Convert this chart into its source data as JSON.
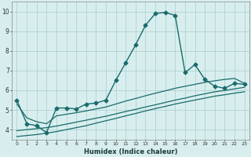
{
  "title": "",
  "xlabel": "Humidex (Indice chaleur)",
  "ylabel": "",
  "background_color": "#d8eeee",
  "grid_color": "#aacccc",
  "line_color": "#1a6b6b",
  "xlim": [
    -0.5,
    23.5
  ],
  "ylim": [
    3.5,
    10.5
  ],
  "xticks": [
    0,
    1,
    2,
    3,
    4,
    5,
    6,
    7,
    8,
    9,
    10,
    11,
    12,
    13,
    14,
    15,
    16,
    17,
    18,
    19,
    20,
    21,
    22,
    23
  ],
  "yticks": [
    4,
    5,
    6,
    7,
    8,
    9,
    10
  ],
  "series": [
    {
      "x": [
        0,
        1,
        2,
        3,
        4,
        5,
        6,
        7,
        8,
        9,
        10,
        11,
        12,
        13,
        14,
        15,
        16,
        17,
        18,
        19,
        20,
        21,
        22,
        23
      ],
      "y": [
        5.5,
        4.3,
        4.2,
        3.85,
        5.1,
        5.1,
        5.05,
        5.3,
        5.35,
        5.5,
        6.5,
        7.4,
        8.3,
        9.3,
        9.9,
        9.95,
        9.8,
        6.9,
        7.3,
        6.55,
        6.2,
        6.1,
        6.35,
        6.3
      ],
      "marker": "D",
      "markersize": 2.5,
      "linewidth": 1.0,
      "linestyle": "-"
    },
    {
      "x": [
        0,
        1,
        2,
        3,
        4,
        5,
        6,
        7,
        8,
        9,
        10,
        11,
        12,
        13,
        14,
        15,
        16,
        17,
        18,
        19,
        20,
        21,
        22,
        23
      ],
      "y": [
        5.3,
        4.6,
        4.4,
        4.3,
        4.7,
        4.78,
        4.86,
        4.95,
        5.05,
        5.15,
        5.3,
        5.45,
        5.58,
        5.72,
        5.85,
        5.97,
        6.1,
        6.2,
        6.3,
        6.4,
        6.48,
        6.55,
        6.6,
        6.35
      ],
      "marker": null,
      "markersize": 0,
      "linewidth": 0.9,
      "linestyle": "-"
    },
    {
      "x": [
        0,
        1,
        2,
        3,
        4,
        5,
        6,
        7,
        8,
        9,
        10,
        11,
        12,
        13,
        14,
        15,
        16,
        17,
        18,
        19,
        20,
        21,
        22,
        23
      ],
      "y": [
        3.95,
        4.0,
        4.05,
        4.1,
        4.18,
        4.28,
        4.38,
        4.48,
        4.58,
        4.68,
        4.8,
        4.92,
        5.03,
        5.15,
        5.26,
        5.38,
        5.5,
        5.6,
        5.72,
        5.82,
        5.92,
        5.99,
        6.07,
        6.15
      ],
      "marker": null,
      "markersize": 0,
      "linewidth": 0.9,
      "linestyle": "-"
    },
    {
      "x": [
        0,
        1,
        2,
        3,
        4,
        5,
        6,
        7,
        8,
        9,
        10,
        11,
        12,
        13,
        14,
        15,
        16,
        17,
        18,
        19,
        20,
        21,
        22,
        23
      ],
      "y": [
        3.65,
        3.7,
        3.75,
        3.82,
        3.9,
        4.0,
        4.1,
        4.2,
        4.33,
        4.45,
        4.57,
        4.7,
        4.82,
        4.95,
        5.07,
        5.18,
        5.3,
        5.4,
        5.5,
        5.6,
        5.7,
        5.77,
        5.85,
        5.92
      ],
      "marker": null,
      "markersize": 0,
      "linewidth": 0.9,
      "linestyle": "-"
    }
  ]
}
